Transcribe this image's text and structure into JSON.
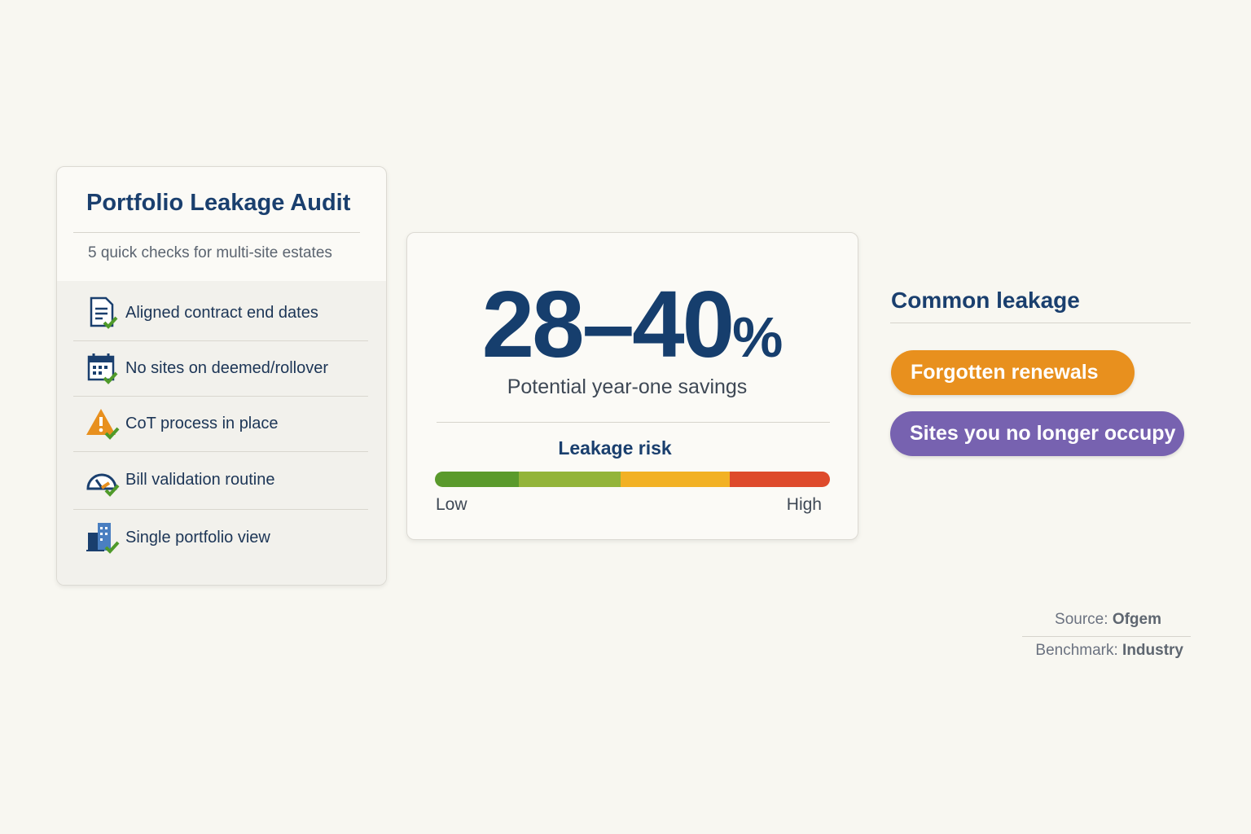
{
  "audit_card": {
    "title": "Portfolio Leakage Audit",
    "subtitle": "5 quick checks for multi-site estates",
    "items": [
      "Aligned contract end dates",
      "No sites on deemed/rollover",
      "CoT process in place",
      "Bill validation routine",
      "Single portfolio view"
    ]
  },
  "savings_card": {
    "stat": {
      "value": "28–40",
      "unit": "%"
    },
    "caption": "Potential year-one savings",
    "risk_title": "Leakage risk",
    "risk_low": "Low",
    "risk_high": "High"
  },
  "common_leakage": {
    "title": "Common leakage",
    "tags": [
      "Forgotten renewals",
      "Sites you no longer occupy"
    ]
  },
  "footer": {
    "source_label": "Source:",
    "source": "Ofgem",
    "benchmark_label": "Benchmark:",
    "benchmark": "Industry"
  }
}
